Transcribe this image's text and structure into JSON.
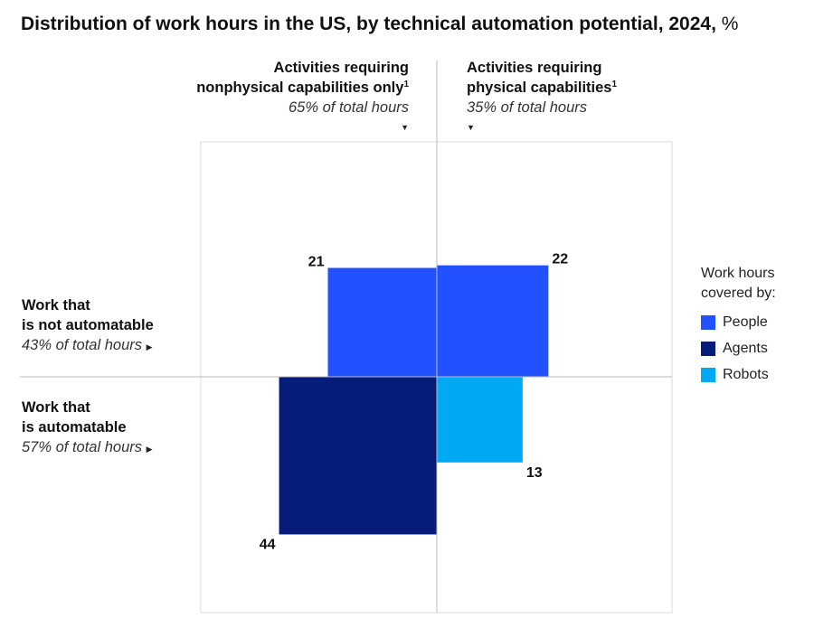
{
  "title_bold": "Distribution of work hours in the US, by technical automation potential, 2024,",
  "title_unit": " %",
  "columns": {
    "left": {
      "line1": "Activities requiring",
      "line2": "nonphysical capabilities only",
      "sup": "1",
      "share": "65% of total hours"
    },
    "right": {
      "line1": "Activities requiring",
      "line2": "physical capabilities",
      "sup": "1",
      "share": "35% of total hours"
    }
  },
  "rows": {
    "top": {
      "line1": "Work that",
      "line2": "is not automatable",
      "share": "43% of total hours"
    },
    "bottom": {
      "line1": "Work that",
      "line2": "is automatable",
      "share": "57% of total hours"
    }
  },
  "legend": {
    "title_line1": "Work hours",
    "title_line2": "covered by:",
    "items": [
      {
        "label": "People",
        "color": "#2251ff"
      },
      {
        "label": "Agents",
        "color": "#051c7a"
      },
      {
        "label": "Robots",
        "color": "#00a9f4"
      }
    ]
  },
  "chart_data": {
    "type": "quadrant-area",
    "unit": "%",
    "cells": [
      {
        "column": "nonphysical capabilities only",
        "row": "not automatable",
        "covered_by": "People",
        "value": 21
      },
      {
        "column": "physical capabilities",
        "row": "not automatable",
        "covered_by": "People",
        "value": 22
      },
      {
        "column": "nonphysical capabilities only",
        "row": "automatable",
        "covered_by": "Agents",
        "value": 44
      },
      {
        "column": "physical capabilities",
        "row": "automatable",
        "covered_by": "Robots",
        "value": 13
      }
    ],
    "colors": {
      "People": "#2251ff",
      "Agents": "#051c7a",
      "Robots": "#00a9f4"
    }
  }
}
